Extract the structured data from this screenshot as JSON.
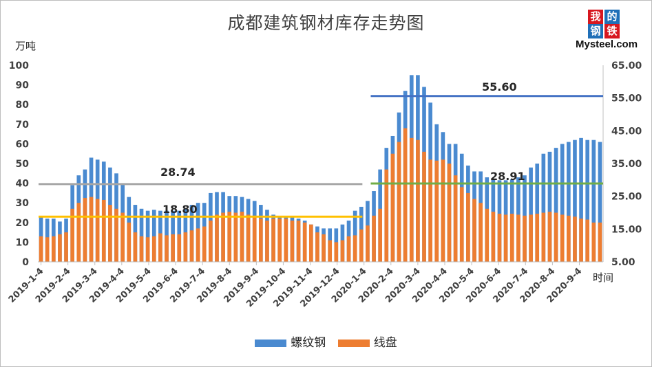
{
  "title": "成都建筑钢材库存走势图",
  "logo": {
    "line1a": "我",
    "line1b": "的",
    "line2a": "钢",
    "line2b": "铁",
    "brand": "Mysteel.com"
  },
  "colors": {
    "rebar": "#4a8ad0",
    "wire": "#ed7d31",
    "avg2019_total": "#a6a6a6",
    "avg2019_wire": "#ffc000",
    "avg2020_total": "#4472c4",
    "avg2020_wire": "#70ad47"
  },
  "chart_data": {
    "type": "bar",
    "stacking": "overlapped",
    "title": "成都建筑钢材库存走势图",
    "ylabel": "万吨",
    "xlabel": "时间",
    "ylim": [
      0,
      100
    ],
    "yticks": [
      "0",
      "10",
      "20",
      "30",
      "40",
      "50",
      "60",
      "70",
      "80",
      "90",
      "100"
    ],
    "y2lim": [
      5,
      65
    ],
    "y2ticks": [
      "5.00",
      "15.00",
      "25.00",
      "35.00",
      "45.00",
      "55.00",
      "65.00"
    ],
    "xticks": [
      "2019-1-4",
      "2019-2-4",
      "2019-3-4",
      "2019-4-4",
      "2019-5-4",
      "2019-6-4",
      "2019-7-4",
      "2019-8-4",
      "2019-9-4",
      "2019-10-4",
      "2019-11-4",
      "2019-12-4",
      "2020-1-4",
      "2020-2-4",
      "2020-3-4",
      "2020-4-4",
      "2020-5-4",
      "2020-6-4",
      "2020-7-4",
      "2020-8-4",
      "2020-9-4"
    ],
    "legend_position": "bottom",
    "series": [
      {
        "name": "螺纹钢",
        "values": [
          23,
          22,
          22,
          20.5,
          22,
          39,
          44,
          47,
          53,
          52,
          51,
          48,
          45,
          40,
          33,
          29,
          27,
          26,
          26.5,
          26,
          26,
          26,
          26,
          27,
          29,
          30,
          30,
          35,
          35.5,
          35.5,
          33.5,
          33.5,
          33,
          32,
          31,
          29,
          26.5,
          24,
          23,
          23,
          23,
          22,
          21,
          19,
          18,
          17,
          17,
          17,
          19,
          21,
          26,
          28,
          31,
          36,
          47,
          58,
          64,
          76,
          87,
          95,
          95,
          89,
          81,
          70,
          66,
          60,
          60,
          55,
          49,
          46,
          46,
          43,
          42,
          41.5,
          41.5,
          42,
          43,
          44,
          48,
          50,
          55,
          56,
          58,
          60,
          61,
          62,
          63,
          62,
          62,
          61
        ]
      },
      {
        "name": "线盘",
        "values": [
          13,
          12.5,
          13,
          14,
          15,
          27,
          30,
          32.5,
          33,
          32,
          31.5,
          29,
          27,
          25,
          20,
          15,
          13,
          12.5,
          13,
          14.5,
          13.5,
          14,
          14,
          15,
          16,
          17,
          18,
          21,
          24,
          25,
          25.5,
          25,
          25.5,
          24,
          23.5,
          22,
          21,
          22,
          22,
          22,
          21,
          21,
          20,
          19,
          15,
          14,
          11,
          10,
          11,
          13,
          13.5,
          16.5,
          18.5,
          23.5,
          27,
          47,
          55,
          61,
          68,
          63,
          62,
          56,
          52,
          51.5,
          52,
          50,
          44,
          38,
          35,
          32,
          30,
          27,
          25.5,
          24.5,
          24,
          24.5,
          24,
          23.5,
          24,
          24.5,
          25,
          25.5,
          25,
          24,
          23.5,
          23,
          22,
          21.5,
          20,
          20
        ]
      }
    ],
    "reference_lines": [
      {
        "label": "28.74",
        "value": 28.74,
        "axis": "right",
        "segment": "2019"
      },
      {
        "label": "18.80",
        "value": 18.8,
        "axis": "right",
        "segment": "2019"
      },
      {
        "label": "55.60",
        "value": 55.6,
        "axis": "right",
        "segment": "2020"
      },
      {
        "label": "28.91",
        "value": 28.91,
        "axis": "right",
        "segment": "2020"
      }
    ]
  }
}
